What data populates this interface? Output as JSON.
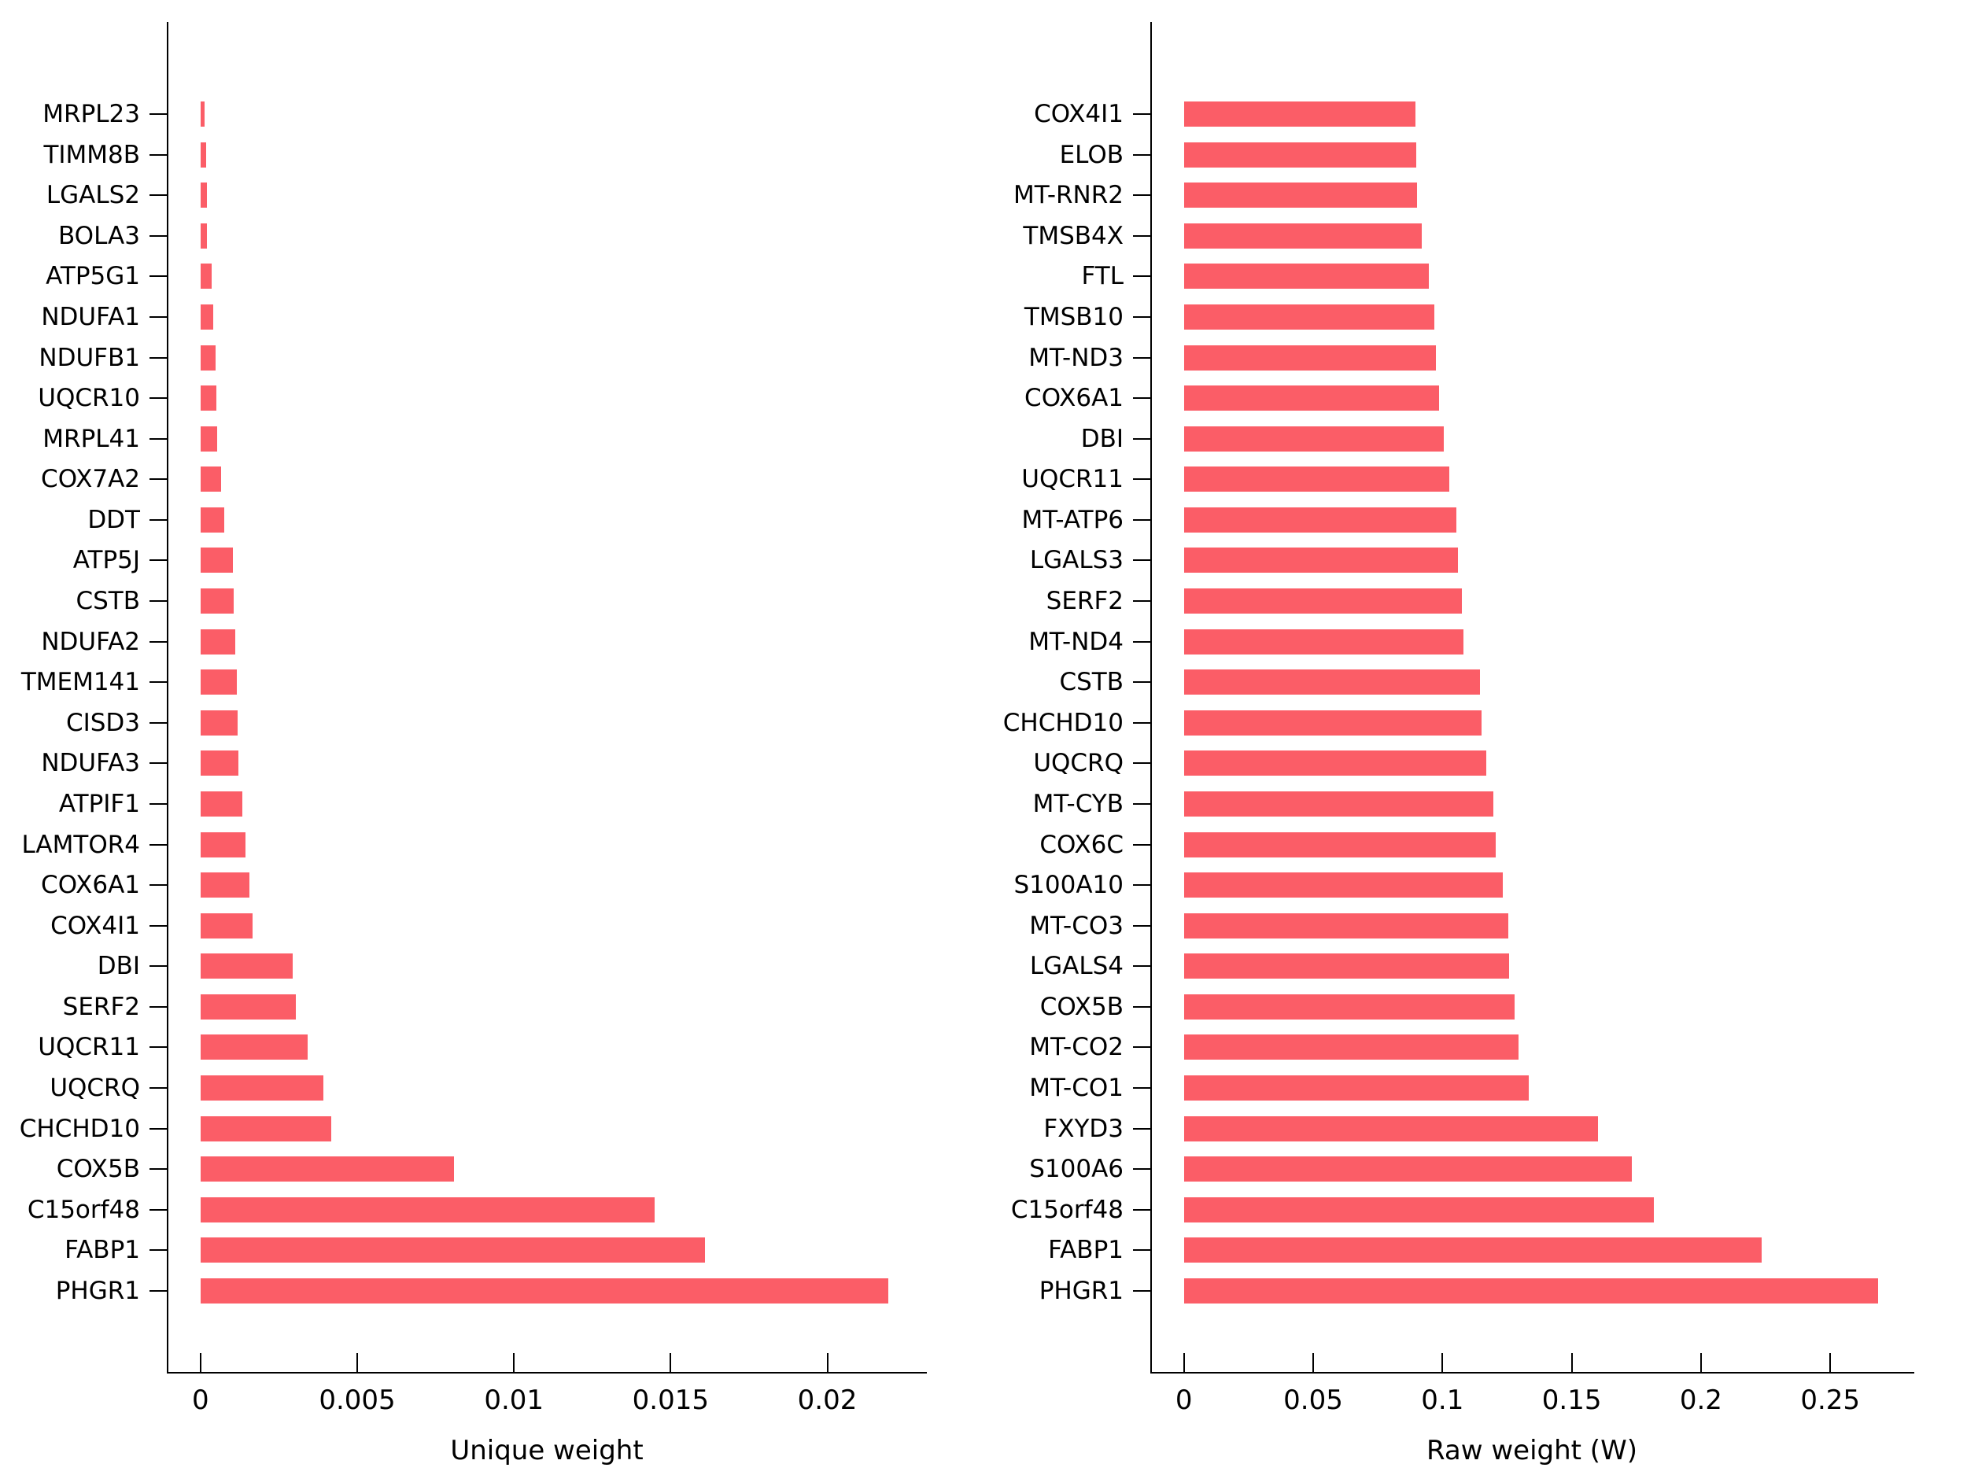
{
  "figure": {
    "background_color": "#ffffff",
    "bar_color": "#FB5D67",
    "axis_color": "#000000",
    "text_color": "#000000"
  },
  "chart_data": [
    {
      "type": "bar",
      "orientation": "horizontal",
      "title": "",
      "xlabel": "Unique weight",
      "ylabel": "",
      "grid": false,
      "legend": null,
      "xlim": [
        -0.001075,
        0.023175
      ],
      "xticks": [
        {
          "value": 0,
          "label": "0"
        },
        {
          "value": 0.005,
          "label": "0.005"
        },
        {
          "value": 0.01,
          "label": "0.01"
        },
        {
          "value": 0.015,
          "label": "0.015"
        },
        {
          "value": 0.02,
          "label": "0.02"
        }
      ],
      "categories": [
        "MRPL23",
        "TIMM8B",
        "LGALS2",
        "BOLA3",
        "ATP5G1",
        "NDUFA1",
        "NDUFB1",
        "UQCR10",
        "MRPL41",
        "COX7A2",
        "DDT",
        "ATP5J",
        "CSTB",
        "NDUFA2",
        "TMEM141",
        "CISD3",
        "NDUFA3",
        "ATPIF1",
        "LAMTOR4",
        "COX6A1",
        "COX4I1",
        "DBI",
        "SERF2",
        "UQCR11",
        "UQCRQ",
        "CHCHD10",
        "COX5B",
        "C15orf48",
        "FABP1",
        "PHGR1"
      ],
      "values": [
        0.00014,
        0.00019,
        0.0002,
        0.0002,
        0.00035,
        0.0004,
        0.00048,
        0.0005,
        0.00053,
        0.00065,
        0.00076,
        0.00103,
        0.00106,
        0.0011,
        0.00116,
        0.00118,
        0.00121,
        0.00134,
        0.00144,
        0.00156,
        0.00167,
        0.00293,
        0.00303,
        0.00342,
        0.00393,
        0.00417,
        0.0081,
        0.0145,
        0.0161,
        0.02195
      ]
    },
    {
      "type": "bar",
      "orientation": "horizontal",
      "title": "",
      "xlabel": "Raw weight (W)",
      "ylabel": "",
      "grid": false,
      "legend": null,
      "xlim": [
        -0.013,
        0.2825
      ],
      "xticks": [
        {
          "value": 0,
          "label": "0"
        },
        {
          "value": 0.05,
          "label": "0.05"
        },
        {
          "value": 0.1,
          "label": "0.1"
        },
        {
          "value": 0.15,
          "label": "0.15"
        },
        {
          "value": 0.2,
          "label": "0.2"
        },
        {
          "value": 0.25,
          "label": "0.25"
        }
      ],
      "categories": [
        "COX4I1",
        "ELOB",
        "MT-RNR2",
        "TMSB4X",
        "FTL",
        "TMSB10",
        "MT-ND3",
        "COX6A1",
        "DBI",
        "UQCR11",
        "MT-ATP6",
        "LGALS3",
        "SERF2",
        "MT-ND4",
        "CSTB",
        "CHCHD10",
        "UQCRQ",
        "MT-CYB",
        "COX6C",
        "S100A10",
        "MT-CO3",
        "LGALS4",
        "COX5B",
        "MT-CO2",
        "MT-CO1",
        "FXYD3",
        "S100A6",
        "C15orf48",
        "FABP1",
        "PHGR1"
      ],
      "values": [
        0.0896,
        0.0899,
        0.0902,
        0.0921,
        0.0948,
        0.097,
        0.0976,
        0.0988,
        0.1004,
        0.1025,
        0.1053,
        0.106,
        0.1076,
        0.108,
        0.1144,
        0.1152,
        0.1171,
        0.1196,
        0.1205,
        0.1233,
        0.1255,
        0.1257,
        0.1279,
        0.1295,
        0.1333,
        0.1602,
        0.1733,
        0.1817,
        0.2235,
        0.2685
      ]
    }
  ]
}
